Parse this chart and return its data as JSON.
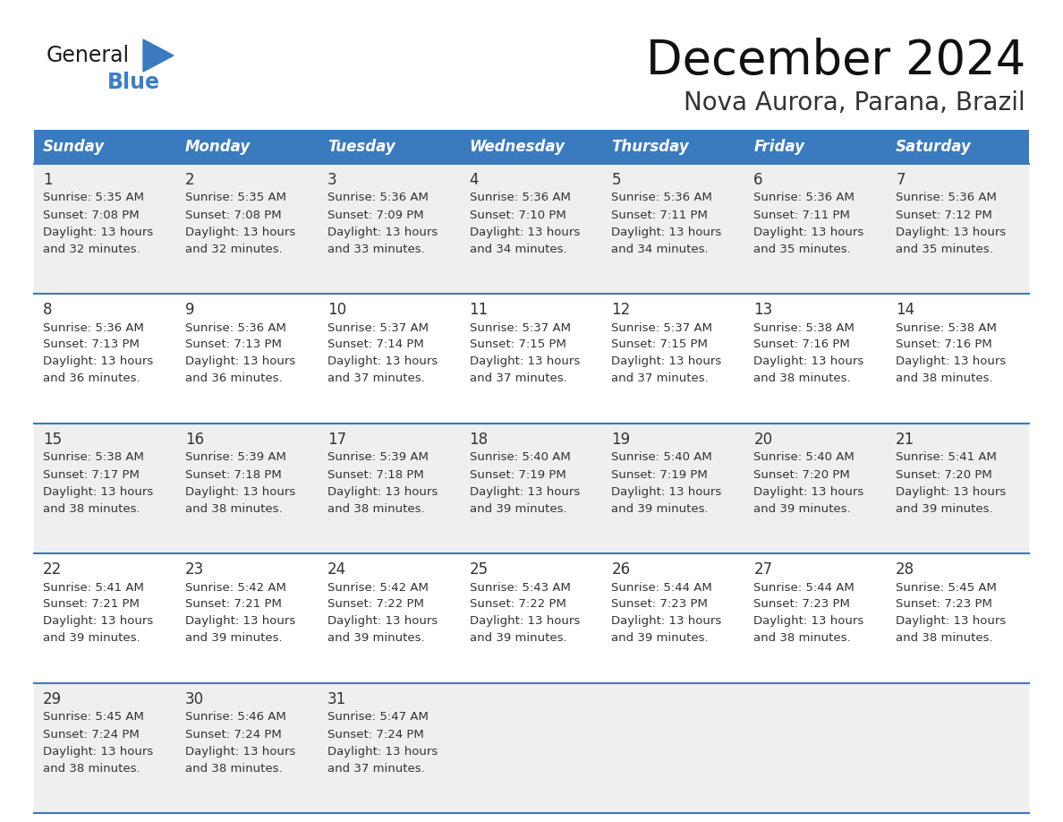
{
  "title": "December 2024",
  "subtitle": "Nova Aurora, Parana, Brazil",
  "header_color": "#3a7abf",
  "header_text_color": "#FFFFFF",
  "days_of_week": [
    "Sunday",
    "Monday",
    "Tuesday",
    "Wednesday",
    "Thursday",
    "Friday",
    "Saturday"
  ],
  "background_color": "#FFFFFF",
  "cell_bg_light": "#EFEFEF",
  "cell_bg_white": "#FFFFFF",
  "grid_color": "#3a7abf",
  "text_color": "#333333",
  "logo_general_color": "#1a1a1a",
  "logo_blue_color": "#3B7EC8",
  "logo_triangle_color": "#3a7abf",
  "calendar_data": [
    [
      {
        "day": 1,
        "sunrise": "5:35 AM",
        "sunset": "7:08 PM",
        "daylight_hours": 13,
        "daylight_minutes": 32
      },
      {
        "day": 2,
        "sunrise": "5:35 AM",
        "sunset": "7:08 PM",
        "daylight_hours": 13,
        "daylight_minutes": 32
      },
      {
        "day": 3,
        "sunrise": "5:36 AM",
        "sunset": "7:09 PM",
        "daylight_hours": 13,
        "daylight_minutes": 33
      },
      {
        "day": 4,
        "sunrise": "5:36 AM",
        "sunset": "7:10 PM",
        "daylight_hours": 13,
        "daylight_minutes": 34
      },
      {
        "day": 5,
        "sunrise": "5:36 AM",
        "sunset": "7:11 PM",
        "daylight_hours": 13,
        "daylight_minutes": 34
      },
      {
        "day": 6,
        "sunrise": "5:36 AM",
        "sunset": "7:11 PM",
        "daylight_hours": 13,
        "daylight_minutes": 35
      },
      {
        "day": 7,
        "sunrise": "5:36 AM",
        "sunset": "7:12 PM",
        "daylight_hours": 13,
        "daylight_minutes": 35
      }
    ],
    [
      {
        "day": 8,
        "sunrise": "5:36 AM",
        "sunset": "7:13 PM",
        "daylight_hours": 13,
        "daylight_minutes": 36
      },
      {
        "day": 9,
        "sunrise": "5:36 AM",
        "sunset": "7:13 PM",
        "daylight_hours": 13,
        "daylight_minutes": 36
      },
      {
        "day": 10,
        "sunrise": "5:37 AM",
        "sunset": "7:14 PM",
        "daylight_hours": 13,
        "daylight_minutes": 37
      },
      {
        "day": 11,
        "sunrise": "5:37 AM",
        "sunset": "7:15 PM",
        "daylight_hours": 13,
        "daylight_minutes": 37
      },
      {
        "day": 12,
        "sunrise": "5:37 AM",
        "sunset": "7:15 PM",
        "daylight_hours": 13,
        "daylight_minutes": 37
      },
      {
        "day": 13,
        "sunrise": "5:38 AM",
        "sunset": "7:16 PM",
        "daylight_hours": 13,
        "daylight_minutes": 38
      },
      {
        "day": 14,
        "sunrise": "5:38 AM",
        "sunset": "7:16 PM",
        "daylight_hours": 13,
        "daylight_minutes": 38
      }
    ],
    [
      {
        "day": 15,
        "sunrise": "5:38 AM",
        "sunset": "7:17 PM",
        "daylight_hours": 13,
        "daylight_minutes": 38
      },
      {
        "day": 16,
        "sunrise": "5:39 AM",
        "sunset": "7:18 PM",
        "daylight_hours": 13,
        "daylight_minutes": 38
      },
      {
        "day": 17,
        "sunrise": "5:39 AM",
        "sunset": "7:18 PM",
        "daylight_hours": 13,
        "daylight_minutes": 38
      },
      {
        "day": 18,
        "sunrise": "5:40 AM",
        "sunset": "7:19 PM",
        "daylight_hours": 13,
        "daylight_minutes": 39
      },
      {
        "day": 19,
        "sunrise": "5:40 AM",
        "sunset": "7:19 PM",
        "daylight_hours": 13,
        "daylight_minutes": 39
      },
      {
        "day": 20,
        "sunrise": "5:40 AM",
        "sunset": "7:20 PM",
        "daylight_hours": 13,
        "daylight_minutes": 39
      },
      {
        "day": 21,
        "sunrise": "5:41 AM",
        "sunset": "7:20 PM",
        "daylight_hours": 13,
        "daylight_minutes": 39
      }
    ],
    [
      {
        "day": 22,
        "sunrise": "5:41 AM",
        "sunset": "7:21 PM",
        "daylight_hours": 13,
        "daylight_minutes": 39
      },
      {
        "day": 23,
        "sunrise": "5:42 AM",
        "sunset": "7:21 PM",
        "daylight_hours": 13,
        "daylight_minutes": 39
      },
      {
        "day": 24,
        "sunrise": "5:42 AM",
        "sunset": "7:22 PM",
        "daylight_hours": 13,
        "daylight_minutes": 39
      },
      {
        "day": 25,
        "sunrise": "5:43 AM",
        "sunset": "7:22 PM",
        "daylight_hours": 13,
        "daylight_minutes": 39
      },
      {
        "day": 26,
        "sunrise": "5:44 AM",
        "sunset": "7:23 PM",
        "daylight_hours": 13,
        "daylight_minutes": 39
      },
      {
        "day": 27,
        "sunrise": "5:44 AM",
        "sunset": "7:23 PM",
        "daylight_hours": 13,
        "daylight_minutes": 38
      },
      {
        "day": 28,
        "sunrise": "5:45 AM",
        "sunset": "7:23 PM",
        "daylight_hours": 13,
        "daylight_minutes": 38
      }
    ],
    [
      {
        "day": 29,
        "sunrise": "5:45 AM",
        "sunset": "7:24 PM",
        "daylight_hours": 13,
        "daylight_minutes": 38
      },
      {
        "day": 30,
        "sunrise": "5:46 AM",
        "sunset": "7:24 PM",
        "daylight_hours": 13,
        "daylight_minutes": 38
      },
      {
        "day": 31,
        "sunrise": "5:47 AM",
        "sunset": "7:24 PM",
        "daylight_hours": 13,
        "daylight_minutes": 37
      },
      null,
      null,
      null,
      null
    ]
  ]
}
